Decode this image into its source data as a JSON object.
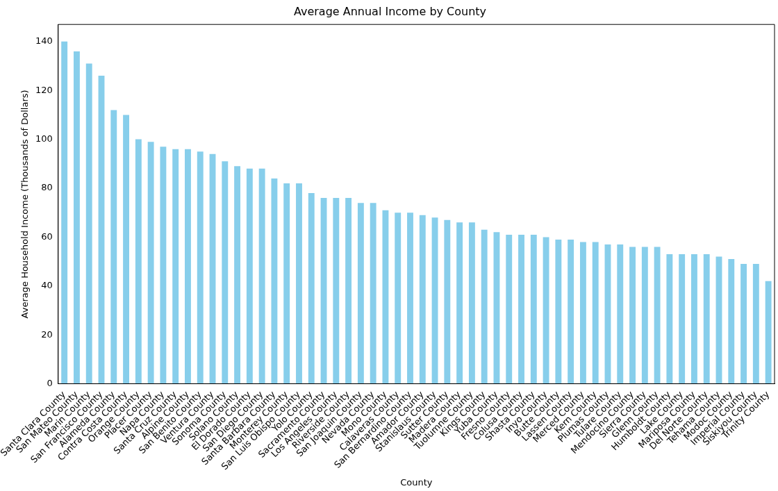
{
  "chart_data": {
    "type": "bar",
    "title": "Average Annual Income by County",
    "xlabel": "County",
    "ylabel": "Average Household Income (Thousands of Dollars)",
    "categories": [
      "Santa Clara County",
      "San Mateo County",
      "Marin County",
      "San Francisco County",
      "Alameda County",
      "Contra Costa County",
      "Orange County",
      "Placer County",
      "Napa County",
      "Santa Cruz County",
      "Alpine County",
      "San Benito County",
      "Ventura County",
      "Sonoma County",
      "Solano County",
      "El Dorado County",
      "San Diego County",
      "Santa Barbara County",
      "Monterey County",
      "San Luis Obispo County",
      "Yolo County",
      "Sacramento County",
      "Los Angeles County",
      "Riverside County",
      "San Joaquin County",
      "Nevada County",
      "Mono County",
      "Calaveras County",
      "San Bernardino County",
      "Amador County",
      "Stanislaus County",
      "Sutter County",
      "Madera County",
      "Tuolumne County",
      "Kings County",
      "Yuba County",
      "Fresno County",
      "Colusa County",
      "Shasta County",
      "Inyo County",
      "Butte County",
      "Lassen County",
      "Merced County",
      "Kern County",
      "Plumas County",
      "Tulare County",
      "Mendocino County",
      "Sierra County",
      "Glenn County",
      "Humboldt County",
      "Lake County",
      "Mariposa County",
      "Del Norte County",
      "Tehama County",
      "Modoc County",
      "Imperial County",
      "Siskiyou County",
      "Trinity County"
    ],
    "values": [
      140,
      136,
      131,
      126,
      112,
      110,
      100,
      99,
      97,
      96,
      96,
      95,
      94,
      91,
      89,
      88,
      88,
      84,
      82,
      82,
      78,
      76,
      76,
      76,
      74,
      74,
      71,
      70,
      70,
      69,
      68,
      67,
      66,
      66,
      63,
      62,
      61,
      61,
      61,
      60,
      59,
      59,
      58,
      58,
      57,
      57,
      56,
      56,
      56,
      53,
      53,
      53,
      53,
      52,
      51,
      49,
      49,
      42
    ],
    "color": "#87ceeb",
    "ylim": [
      0,
      147
    ],
    "yticks": [
      0,
      20,
      40,
      60,
      80,
      100,
      120,
      140
    ],
    "grid": false,
    "legend": false
  }
}
